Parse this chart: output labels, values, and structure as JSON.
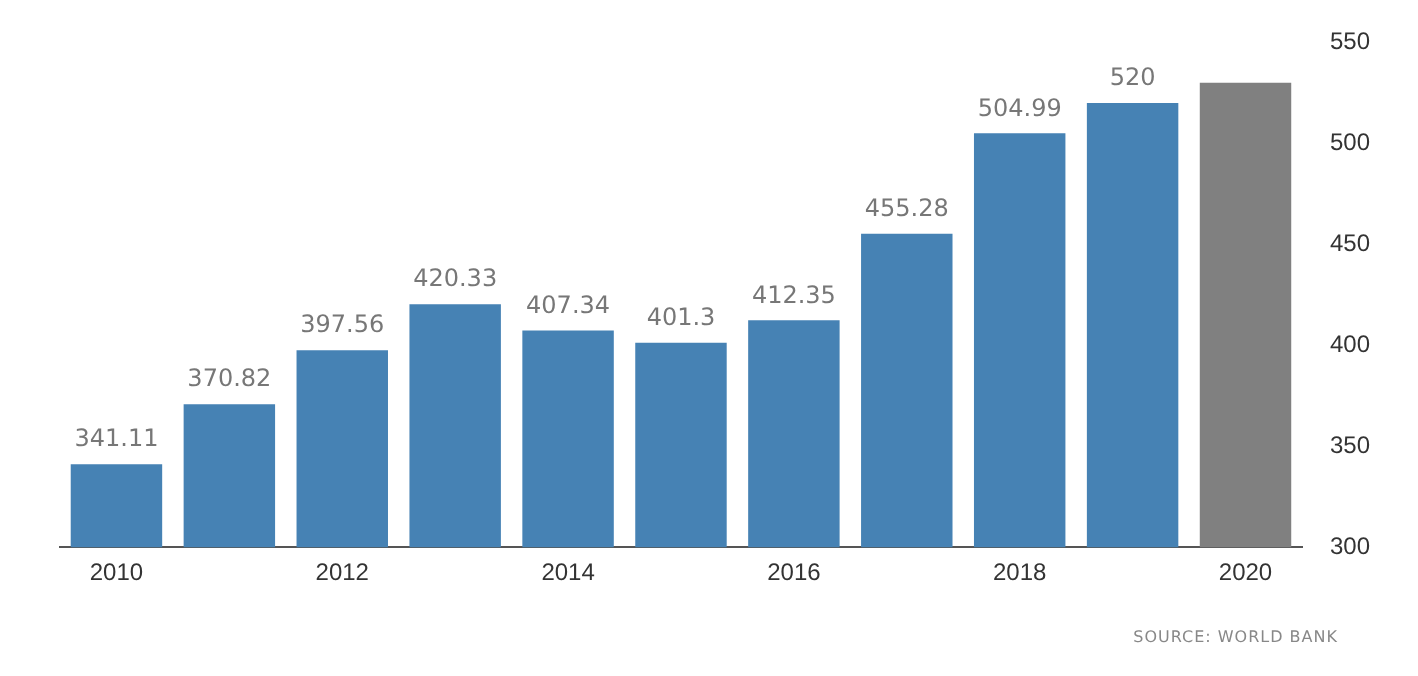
{
  "chart_data": {
    "type": "bar",
    "categories": [
      "2010",
      null,
      "2012",
      null,
      "2014",
      null,
      "2016",
      null,
      "2018",
      null,
      "2020"
    ],
    "values": [
      341.11,
      370.82,
      397.56,
      420.33,
      407.34,
      401.3,
      412.35,
      455.28,
      504.99,
      520,
      530
    ],
    "colors": [
      "#4682b4",
      "#4682b4",
      "#4682b4",
      "#4682b4",
      "#4682b4",
      "#4682b4",
      "#4682b4",
      "#4682b4",
      "#4682b4",
      "#4682b4",
      "#808080"
    ],
    "value_labels": [
      "341.11",
      "370.82",
      "397.56",
      "420.33",
      "407.34",
      "401.3",
      "412.35",
      "455.28",
      "504.99",
      "520",
      null
    ],
    "ylim": [
      300,
      550
    ],
    "yticks": [
      300,
      350,
      400,
      450,
      500,
      550
    ],
    "grid": false,
    "legend": false,
    "annotations": [
      "SOURCE: WORLD BANK"
    ]
  }
}
